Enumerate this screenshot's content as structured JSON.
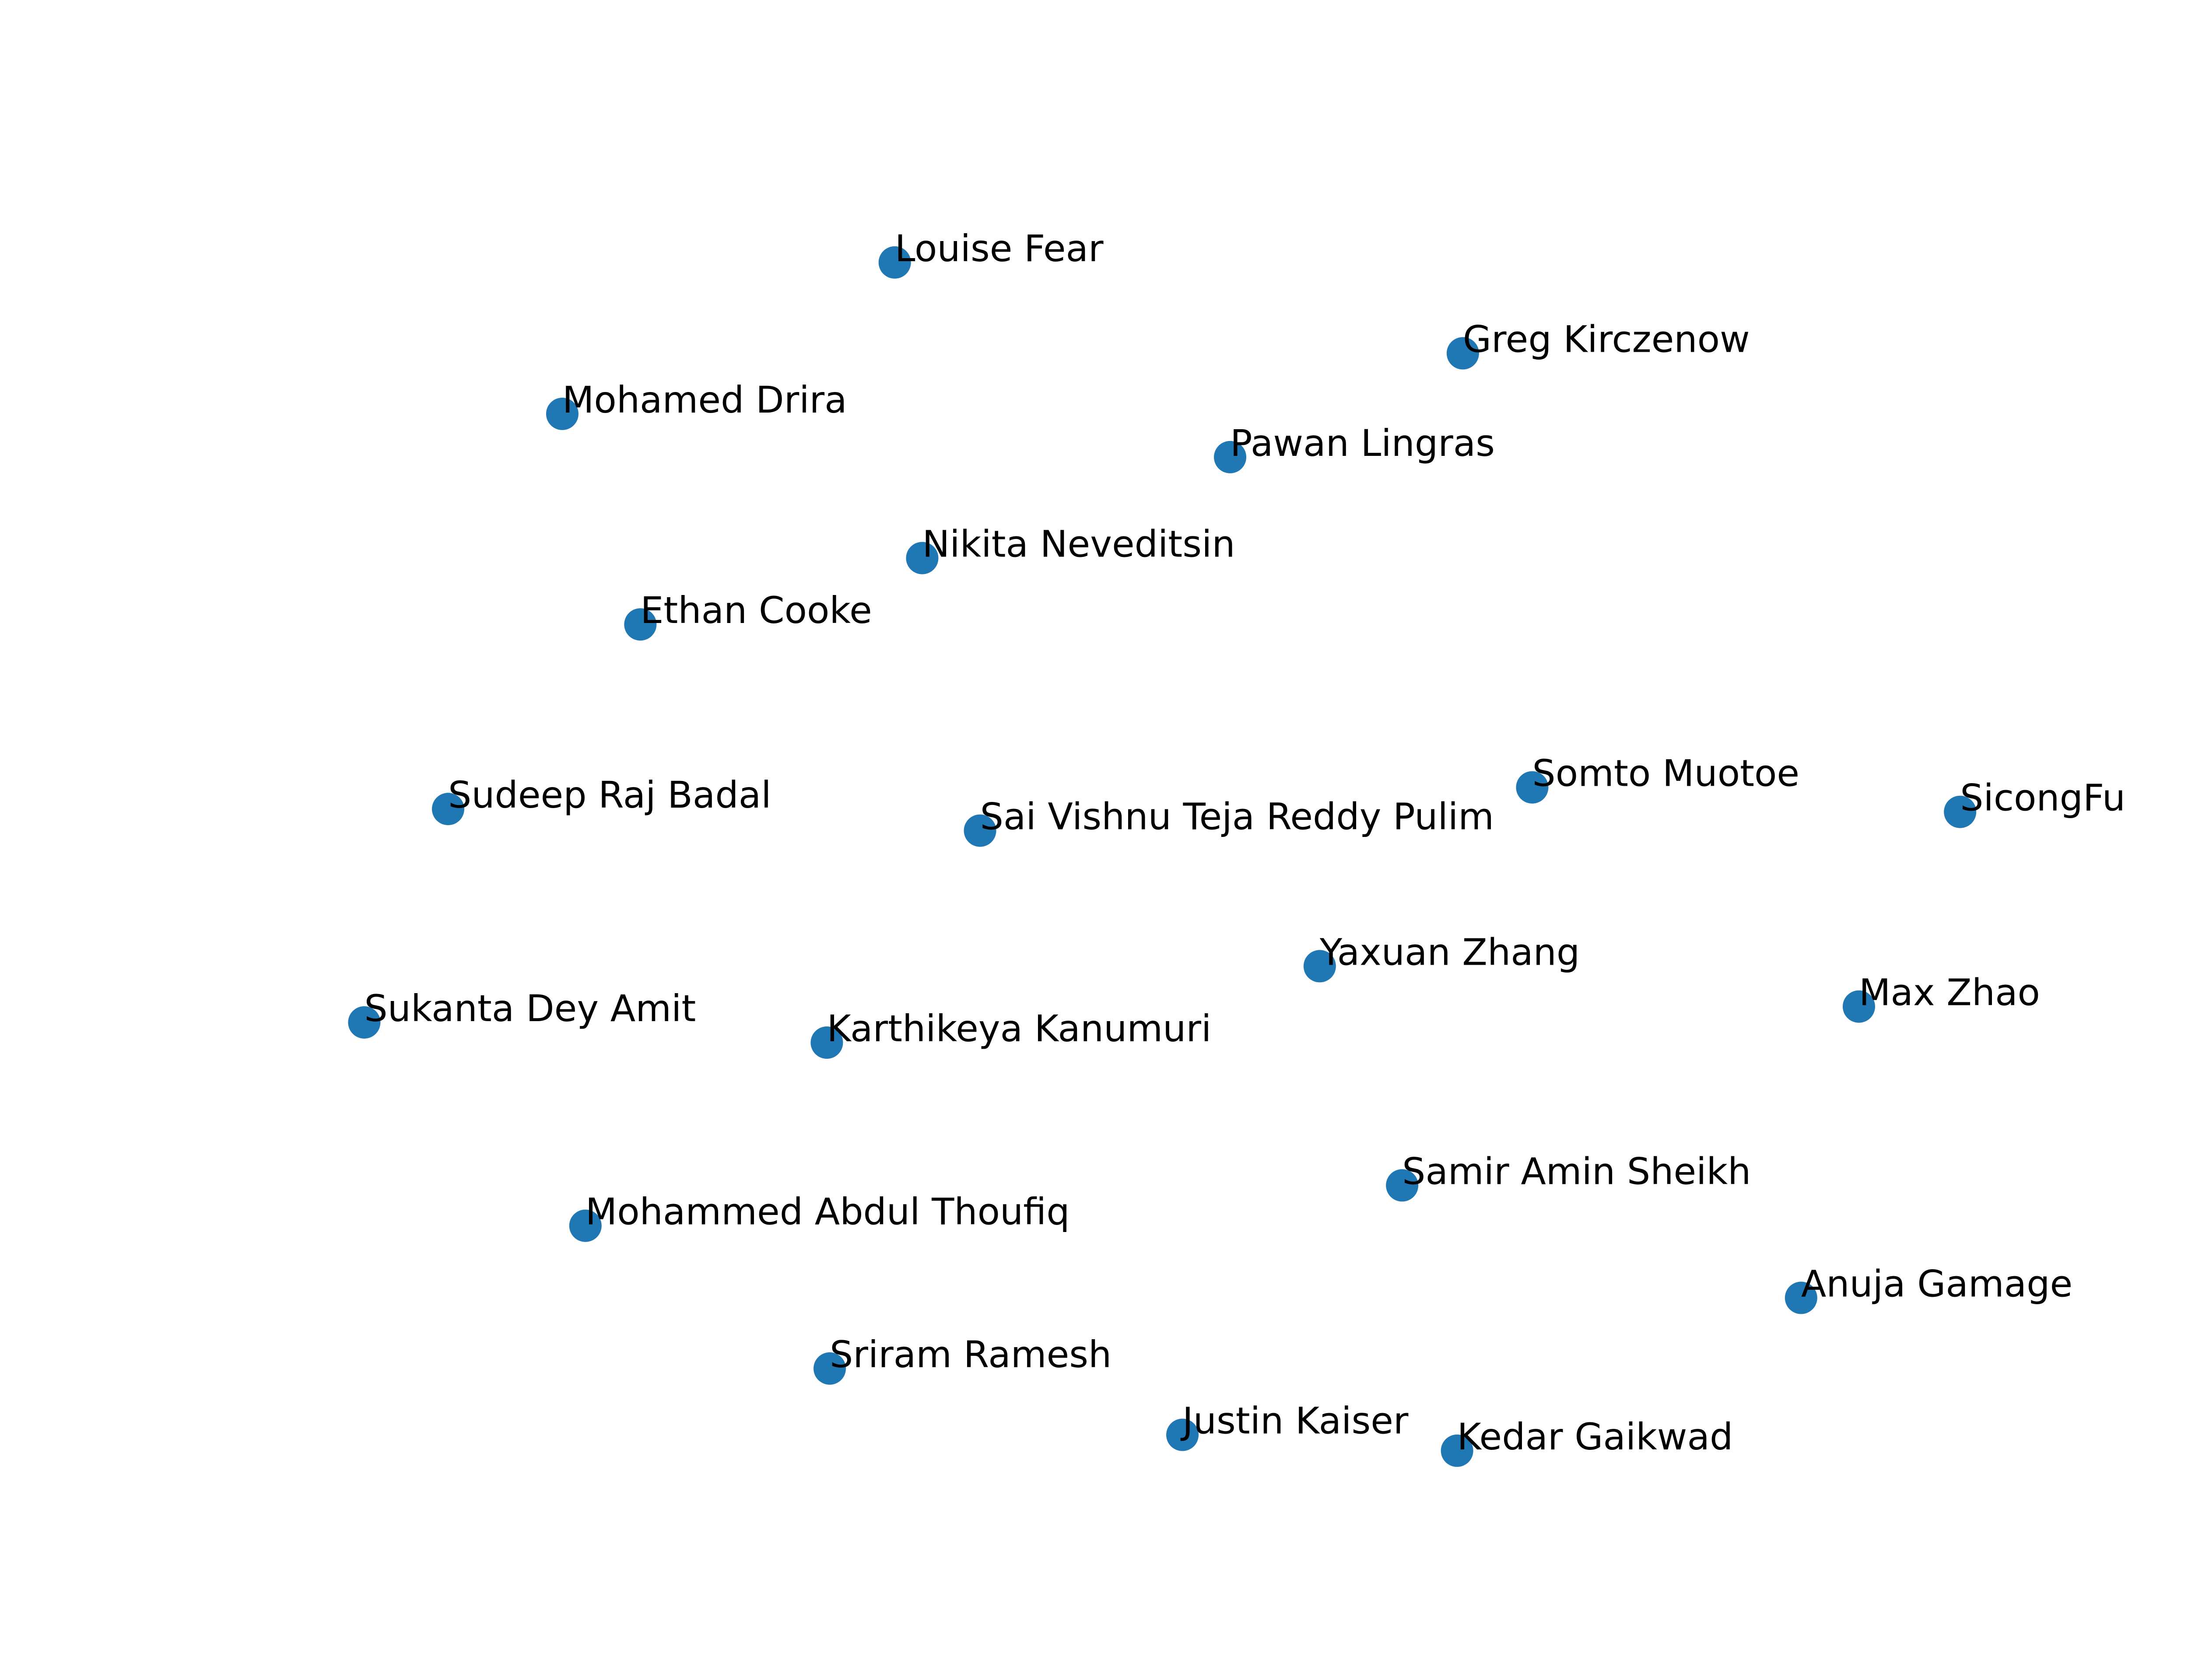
{
  "chart_data": {
    "type": "scatter",
    "title": "",
    "xlabel": "",
    "ylabel": "",
    "grid": false,
    "axes_visible": false,
    "marker_color": "#1f77b4",
    "xlim": [
      0,
      1550
    ],
    "ylim": [
      0,
      1165
    ],
    "points": [
      {
        "label": "Louise Fear",
        "x": 619,
        "y": 983
      },
      {
        "label": "Greg Kirczenow",
        "x": 1012,
        "y": 920
      },
      {
        "label": "Mohamed Drira",
        "x": 389,
        "y": 878
      },
      {
        "label": "Pawan Lingras",
        "x": 851,
        "y": 848
      },
      {
        "label": "Nikita Neveditsin",
        "x": 638,
        "y": 778
      },
      {
        "label": "Ethan Cooke",
        "x": 443,
        "y": 732
      },
      {
        "label": "Somto Muotoe",
        "x": 1060,
        "y": 619
      },
      {
        "label": "SicongFu",
        "x": 1356,
        "y": 602
      },
      {
        "label": "Sudeep Raj Badal",
        "x": 310,
        "y": 604
      },
      {
        "label": "Sai Vishnu Teja Reddy Pulim",
        "x": 678,
        "y": 589
      },
      {
        "label": "Yaxuan Zhang",
        "x": 913,
        "y": 495
      },
      {
        "label": "Max Zhao",
        "x": 1286,
        "y": 467
      },
      {
        "label": "Sukanta Dey Amit",
        "x": 252,
        "y": 456
      },
      {
        "label": "Karthikeya Kanumuri",
        "x": 572,
        "y": 442
      },
      {
        "label": "Samir Amin Sheikh",
        "x": 970,
        "y": 343
      },
      {
        "label": "Mohammed Abdul Thoufiq",
        "x": 405,
        "y": 315
      },
      {
        "label": "Anuja Gamage",
        "x": 1246,
        "y": 265
      },
      {
        "label": "Sriram Ramesh",
        "x": 574,
        "y": 216
      },
      {
        "label": "Justin Kaiser",
        "x": 818,
        "y": 170
      },
      {
        "label": "Kedar Gaikwad",
        "x": 1008,
        "y": 159
      }
    ]
  }
}
